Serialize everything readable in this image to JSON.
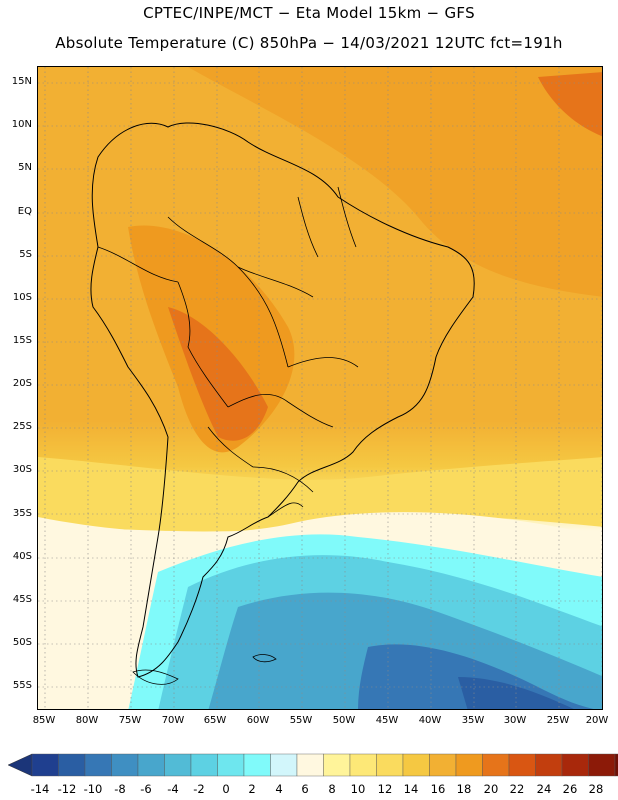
{
  "header": {
    "line1": "CPTEC/INPE/MCT −  Eta Model 15km − GFS",
    "line2": "Absolute Temperature (C) 850hPa − 14/03/2021 12UTC fct=191h"
  },
  "map": {
    "lat_labels": [
      "15N",
      "10N",
      "5N",
      "EQ",
      "5S",
      "10S",
      "15S",
      "20S",
      "25S",
      "30S",
      "35S",
      "40S",
      "45S",
      "50S",
      "55S"
    ],
    "lon_labels": [
      "85W",
      "80W",
      "75W",
      "70W",
      "65W",
      "60W",
      "55W",
      "50W",
      "45W",
      "40W",
      "35W",
      "30W",
      "25W",
      "20W"
    ]
  },
  "colorbar": {
    "labels": [
      "-14",
      "-12",
      "-10",
      "-8",
      "-6",
      "-4",
      "-2",
      "0",
      "2",
      "4",
      "6",
      "8",
      "10",
      "12",
      "14",
      "16",
      "18",
      "20",
      "22",
      "24",
      "26",
      "28"
    ],
    "colors": [
      "#1f3f8f",
      "#2a5ea3",
      "#3677b5",
      "#3f8fc2",
      "#48a6cc",
      "#52bbd6",
      "#5dd1e3",
      "#6ee6ee",
      "#80fafa",
      "#d2f6fb",
      "#fff8e0",
      "#fff49a",
      "#fde877",
      "#fadb5e",
      "#f5c842",
      "#f2b033",
      "#ef9a1f",
      "#e6741a",
      "#d95612",
      "#c23e0e",
      "#a8280b",
      "#8c1a08",
      "#6f1005"
    ],
    "left_arrow_color": "#1b3579",
    "right_arrow_color": "#6f1005"
  }
}
